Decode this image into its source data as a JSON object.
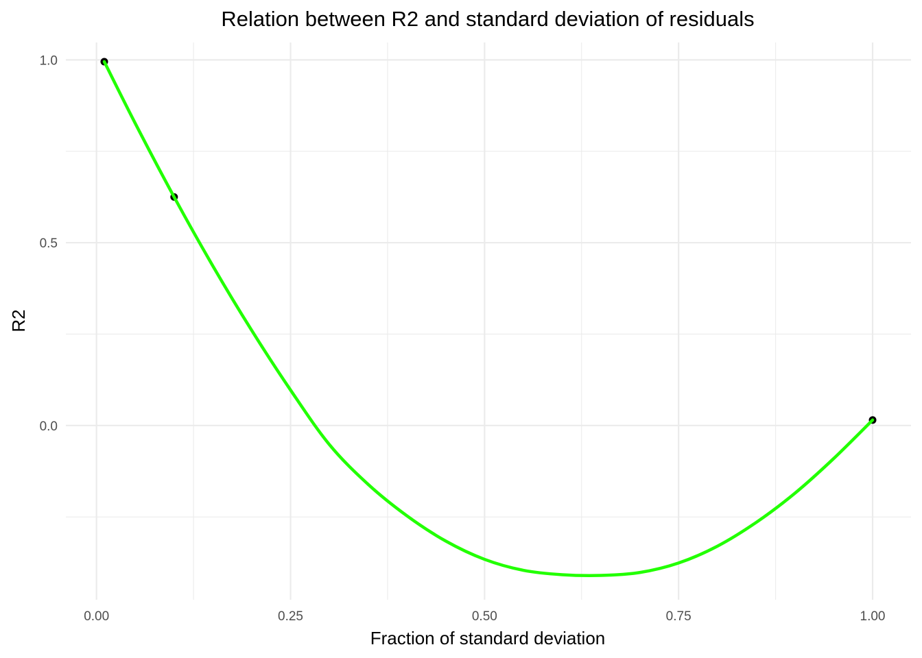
{
  "chart_data": {
    "type": "line",
    "title": "Relation between R2 and standard deviation of residuals",
    "xlabel": "Fraction of standard deviation",
    "ylabel": "R2",
    "xlim": [
      -0.0395,
      1.0495
    ],
    "ylim": [
      -0.4765,
      1.0475
    ],
    "x_ticks": [
      0.0,
      0.25,
      0.5,
      0.75,
      1.0
    ],
    "x_tick_labels": [
      "0.00",
      "0.25",
      "0.50",
      "0.75",
      "1.00"
    ],
    "y_ticks": [
      0.0,
      0.5,
      1.0
    ],
    "y_tick_labels": [
      "0.0",
      "0.5",
      "1.0"
    ],
    "x_minor_ticks": [
      0.125,
      0.375,
      0.625,
      0.875
    ],
    "y_minor_ticks": [
      -0.25,
      0.25,
      0.75
    ],
    "grid": true,
    "series": [
      {
        "kind": "points",
        "color": "#000000",
        "x": [
          0.01,
          0.1,
          1.0
        ],
        "y": [
          0.995,
          0.625,
          0.015
        ]
      },
      {
        "kind": "smooth-line",
        "color": "#22ff00",
        "x": [
          0.01,
          0.05,
          0.1,
          0.15,
          0.2,
          0.25,
          0.3,
          0.35,
          0.4,
          0.45,
          0.5,
          0.55,
          0.6,
          0.65,
          0.7,
          0.75,
          0.8,
          0.85,
          0.9,
          0.95,
          1.0
        ],
        "y": [
          0.995,
          0.826,
          0.625,
          0.436,
          0.26,
          0.097,
          -0.052,
          -0.161,
          -0.247,
          -0.316,
          -0.366,
          -0.396,
          -0.408,
          -0.41,
          -0.402,
          -0.376,
          -0.33,
          -0.265,
          -0.185,
          -0.09,
          0.015
        ]
      }
    ]
  }
}
